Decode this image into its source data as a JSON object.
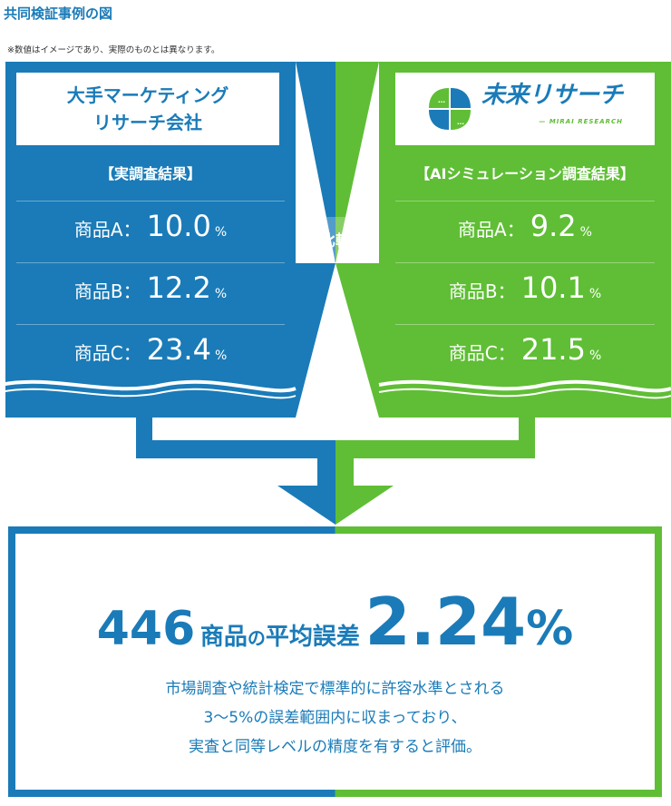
{
  "title": "共同検証事例の図",
  "note": "※数値はイメージであり、実際のものとは異なります。",
  "colors": {
    "blue": "#1a7bb8",
    "green": "#5fbe35"
  },
  "left_panel": {
    "header_line1": "大手マーケティング",
    "header_line2": "リサーチ会社",
    "subtitle": "【実調査結果】",
    "rows": [
      {
        "name": "商品A：",
        "value": "10.0",
        "unit": "%"
      },
      {
        "name": "商品B：",
        "value": "12.2",
        "unit": "%"
      },
      {
        "name": "商品C：",
        "value": "23.4",
        "unit": "%"
      }
    ]
  },
  "compare_label": "比較",
  "right_panel": {
    "logo_text": "未来リサーチ",
    "logo_sub": "— MIRAI RESEARCH",
    "logo_icon": "clover-chat-icon",
    "subtitle": "【AIシミュレーション調査結果】",
    "rows": [
      {
        "name": "商品A：",
        "value": "9.2",
        "unit": "%"
      },
      {
        "name": "商品B：",
        "value": "10.1",
        "unit": "%"
      },
      {
        "name": "商品C：",
        "value": "21.5",
        "unit": "%"
      }
    ]
  },
  "result": {
    "count": "446",
    "mid1": "商品",
    "mid2": "の",
    "mid3": "平均誤差",
    "error_value": "2.24",
    "error_unit": "%",
    "desc_line1": "市場調査や統計検定で標準的に許容水準とされる",
    "desc_line2": "3〜5%の誤差範囲内に収まっており、",
    "desc_line3": "実査と同等レベルの精度を有すると評価。"
  }
}
